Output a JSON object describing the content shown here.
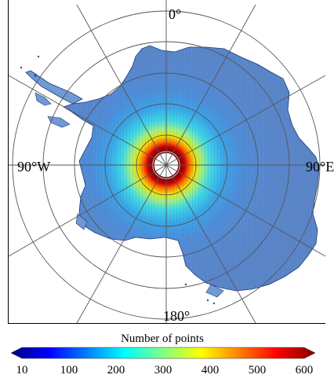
{
  "map": {
    "labels": {
      "top": "0°",
      "bottom": "180°",
      "left": "90°W",
      "right": "90°E"
    }
  },
  "legend": {
    "title": "Number of points",
    "ticks": [
      "10",
      "100",
      "200",
      "300",
      "400",
      "500",
      "600"
    ],
    "colors": [
      "#000080",
      "#0000ff",
      "#0080ff",
      "#00ffff",
      "#80ff80",
      "#ffff00",
      "#ff8000",
      "#ff0000",
      "#800000"
    ]
  },
  "colors": {
    "land_base": "#5b86c8",
    "ring_high": "#a00000",
    "grid": "#555555"
  }
}
